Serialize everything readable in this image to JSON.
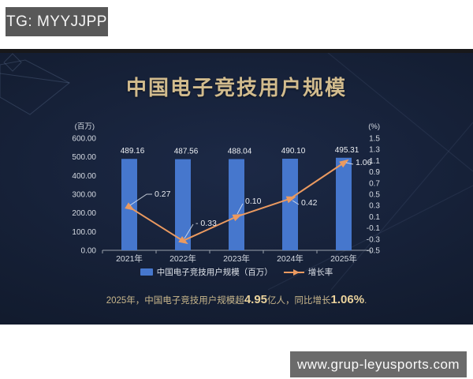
{
  "watermarks": {
    "tg": "TG: MYYJJPP",
    "site": "www.grup-leyusports.com"
  },
  "chart_data": {
    "type": "bar+line combo",
    "title": "中国电子竞技用户规模",
    "categories": [
      "2021年",
      "2022年",
      "2023年",
      "2024年",
      "2025年"
    ],
    "series": [
      {
        "name": "中国电子竞技用户规模（百万）",
        "type": "bar",
        "axis": "left",
        "color": "#4677cd",
        "values": [
          489.16,
          487.56,
          488.04,
          490.1,
          495.31
        ],
        "labels": [
          "489.16",
          "487.56",
          "488.04",
          "490.10",
          "495.31"
        ]
      },
      {
        "name": "增长率",
        "type": "line",
        "axis": "right",
        "color": "#eb9a60",
        "values": [
          0.27,
          -0.33,
          0.1,
          0.42,
          1.06
        ],
        "labels": [
          "0.27",
          "- 0.33",
          "0.10",
          "0.42",
          "1.06"
        ]
      }
    ],
    "left_axis": {
      "unit": "(百万)",
      "min": 0,
      "max": 600,
      "ticks": [
        "600.00",
        "500.00",
        "400.00",
        "300.00",
        "200.00",
        "100.00",
        "0.00"
      ]
    },
    "right_axis": {
      "unit": "(%)",
      "min": -0.5,
      "max": 1.5,
      "ticks": [
        "1.5",
        "1.3",
        "1.1",
        "0.9",
        "0.7",
        "0.5",
        "0.3",
        "0.1",
        "-0.1",
        "-0.3",
        "-0.5"
      ]
    },
    "legend": [
      "中国电子竞技用户规模（百万）",
      "增长率"
    ],
    "legend_position": "bottom",
    "grid": false
  },
  "note": {
    "part1": "2025年，中国电子竞技用户规模超",
    "big1": "4.95",
    "part2": "亿人，同比增长",
    "big2": "1.06%",
    "part3": "."
  },
  "colors": {
    "panel_bg": "#131d2f",
    "bar": "#4677cd",
    "line": "#eb9a60",
    "title": "#d2bc8e",
    "axis_text": "#d5dae2",
    "note_text": "#c8b68b",
    "note_strong": "#ead29c",
    "watermark_bg_top": "#585858",
    "watermark_bg_bottom": "#6b6b6b"
  }
}
